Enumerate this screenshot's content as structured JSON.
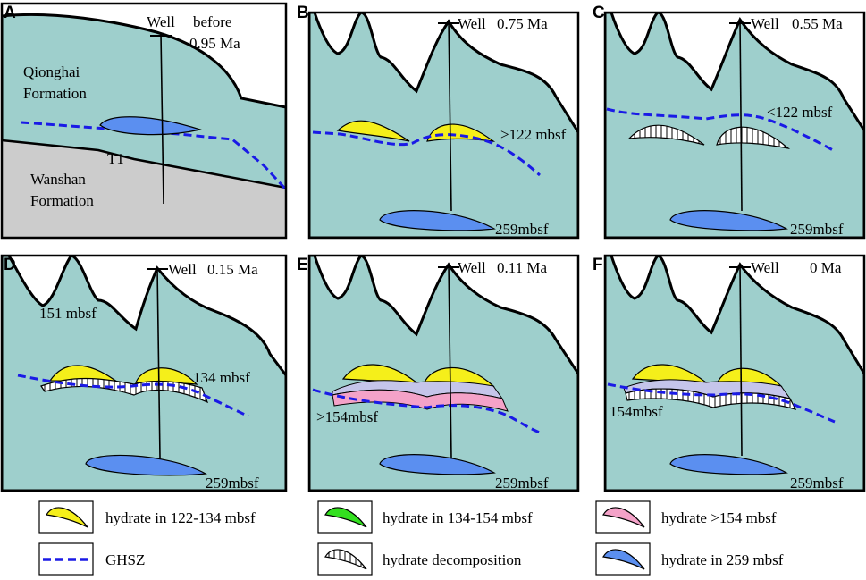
{
  "panels": [
    {
      "id": "A",
      "letter": "A",
      "well": "Well",
      "time_line1": "before",
      "time_line2": "0.95 Ma",
      "formation_upper_1": "Qionghai",
      "formation_upper_2": "Formation",
      "boundary": "T1",
      "formation_lower_1": "Wanshan",
      "formation_lower_2": "Formation"
    },
    {
      "id": "B",
      "letter": "B",
      "well": "Well",
      "time": "0.75 Ma",
      "depth_label": ">122 mbsf",
      "deep_label": "259mbsf"
    },
    {
      "id": "C",
      "letter": "C",
      "well": "Well",
      "time": "0.55 Ma",
      "depth_label": "<122 mbsf",
      "deep_label": "259mbsf"
    },
    {
      "id": "D",
      "letter": "D",
      "well": "Well",
      "time": "0.15 Ma",
      "seafloor_label": "151 mbsf",
      "depth_label": "134 mbsf",
      "deep_label": "259mbsf"
    },
    {
      "id": "E",
      "letter": "E",
      "well": "Well",
      "time": "0.11 Ma",
      "depth_label": ">154mbsf",
      "deep_label": "259mbsf"
    },
    {
      "id": "F",
      "letter": "F",
      "well": "Well",
      "time": "0 Ma",
      "depth_label": "154mbsf",
      "deep_label": "259mbsf"
    }
  ],
  "legend": [
    {
      "label": "hydrate in 122-134 mbsf",
      "symbol": "yellow-lens",
      "color": "#f5ef1a"
    },
    {
      "label": "hydrate in 134-154 mbsf",
      "symbol": "green-lens",
      "color": "#33e01f"
    },
    {
      "label": "hydrate >154 mbsf",
      "symbol": "pink-lens",
      "color": "#f4a2c8"
    },
    {
      "label": "GHSZ",
      "symbol": "blue-dashed-line",
      "color": "#1a1ae6"
    },
    {
      "label": "hydrate decomposition",
      "symbol": "hatched-lens",
      "color": "#ffffff"
    },
    {
      "label": "hydrate in 259 mbsf",
      "symbol": "blue-lens",
      "color": "#5b8ff0"
    }
  ],
  "colors": {
    "sediment": "#9ecfcc",
    "wanshan": "#cccccc",
    "hydrate_yellow": "#f5ef1a",
    "hydrate_pink": "#f4a2c8",
    "hydrate_lavender": "#c5c5ea",
    "hydrate_blue": "#5b8ff0",
    "ghsz": "#1a1ae6"
  }
}
